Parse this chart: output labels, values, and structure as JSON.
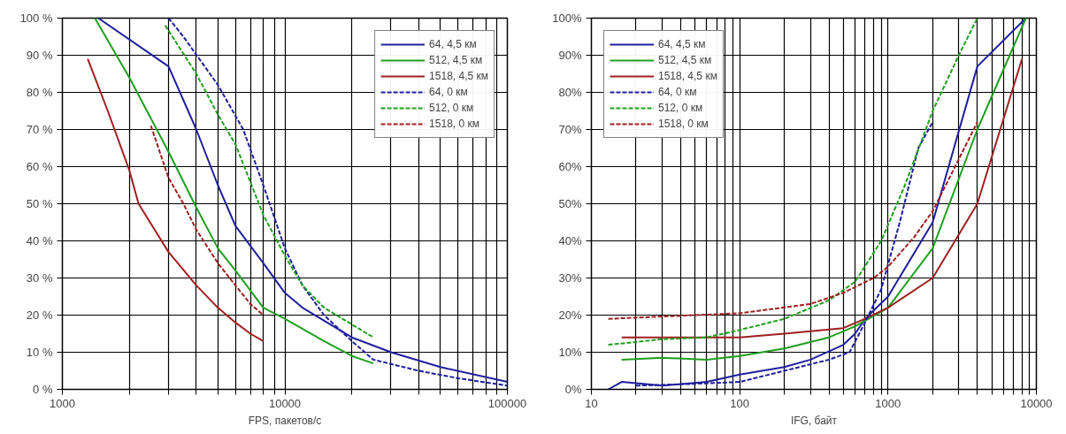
{
  "chart_data": [
    {
      "type": "line",
      "xlabel": "FPS, пакетов/с",
      "log": "x",
      "grid": true,
      "legend": "top right",
      "line_style": "solid",
      "marker": "none",
      "xlim": [
        1000,
        100000
      ],
      "xticks": [
        1000,
        {
          "value": 2000,
          "label": null
        },
        {
          "value": 3000,
          "label": null
        },
        {
          "value": 4000,
          "label": null
        },
        {
          "value": 5000,
          "label": null
        },
        {
          "value": 6000,
          "label": null
        },
        {
          "value": 7000,
          "label": null
        },
        {
          "value": 8000,
          "label": null
        },
        {
          "value": 9000,
          "label": null
        },
        10000,
        {
          "value": 20000,
          "label": null
        },
        {
          "value": 30000,
          "label": null
        },
        {
          "value": 40000,
          "label": null
        },
        {
          "value": 50000,
          "label": null
        },
        {
          "value": 60000,
          "label": null
        },
        {
          "value": 70000,
          "label": null
        },
        {
          "value": 80000,
          "label": null
        },
        {
          "value": 90000,
          "label": null
        },
        100000
      ],
      "ylim": [
        0,
        100
      ],
      "yticks": [
        {
          "value": 0,
          "label": "0 %"
        },
        {
          "value": 10,
          "label": "10 %"
        },
        {
          "value": 20,
          "label": "20 %"
        },
        {
          "value": 30,
          "label": "30 %"
        },
        {
          "value": 40,
          "label": "40 %"
        },
        {
          "value": 50,
          "label": "50 %"
        },
        {
          "value": 60,
          "label": "60 %"
        },
        {
          "value": 70,
          "label": "70 %"
        },
        {
          "value": 80,
          "label": "80 %"
        },
        {
          "value": 90,
          "label": "90 %"
        },
        {
          "value": 100,
          "label": "100 %"
        }
      ],
      "series": [
        {
          "name": "64, 4,5 км",
          "color": "#1f1f9f",
          "x": [
            1450,
            3000,
            4000,
            5000,
            6000,
            8000,
            10000,
            12000,
            20000,
            30000,
            50000,
            100000
          ],
          "values": [
            100,
            87,
            70,
            55,
            44,
            34,
            26,
            22,
            14,
            10,
            6,
            2
          ]
        },
        {
          "name": "512, 4,5 км",
          "color": "#1f9f1f",
          "x": [
            1400,
            2000,
            3000,
            4000,
            5000,
            6000,
            8000,
            10000,
            15000,
            20000,
            25000
          ],
          "values": [
            100,
            84,
            64,
            49,
            38,
            32,
            22,
            19,
            13,
            9,
            7
          ]
        },
        {
          "name": "1518, 4,5 км",
          "color": "#9f1f1f",
          "x": [
            1300,
            1600,
            2000,
            2200,
            3000,
            4000,
            5000,
            6000,
            7000,
            8000
          ],
          "values": [
            89,
            75,
            59,
            50,
            37,
            28,
            22,
            18,
            15,
            13
          ]
        },
        {
          "name": "64, 0 км",
          "color": "#1f1f9f",
          "line_style": "dashed",
          "x": [
            3000,
            3500,
            5000,
            6500,
            8000,
            10000,
            12000,
            15000,
            20000,
            25000,
            40000,
            60000,
            100000
          ],
          "values": [
            100,
            95,
            82,
            70,
            55,
            38,
            28,
            20,
            13,
            8,
            5,
            3,
            1
          ]
        },
        {
          "name": "512, 0 км",
          "color": "#1f9f1f",
          "line_style": "dashed",
          "x": [
            2900,
            4000,
            5000,
            6000,
            8000,
            10000,
            12000,
            15000,
            25000
          ],
          "values": [
            98,
            85,
            74,
            66,
            47,
            36,
            28,
            22,
            14
          ]
        },
        {
          "name": "1518, 0 км",
          "color": "#9f1f1f",
          "line_style": "dashed",
          "x": [
            2500,
            3000,
            3500,
            4000,
            5000,
            6000,
            7000,
            8000
          ],
          "values": [
            71,
            57,
            50,
            43,
            34,
            28,
            23,
            20
          ]
        }
      ]
    },
    {
      "type": "line",
      "xlabel": "IFG, байт",
      "log": "x",
      "grid": true,
      "legend": "top left",
      "line_style": "solid",
      "marker": "none",
      "xlim": [
        10,
        10000
      ],
      "xticks": [
        10,
        {
          "value": 20,
          "label": null
        },
        {
          "value": 30,
          "label": null
        },
        {
          "value": 40,
          "label": null
        },
        {
          "value": 50,
          "label": null
        },
        {
          "value": 60,
          "label": null
        },
        {
          "value": 70,
          "label": null
        },
        {
          "value": 80,
          "label": null
        },
        {
          "value": 90,
          "label": null
        },
        100,
        {
          "value": 200,
          "label": null
        },
        {
          "value": 300,
          "label": null
        },
        {
          "value": 400,
          "label": null
        },
        {
          "value": 500,
          "label": null
        },
        {
          "value": 600,
          "label": null
        },
        {
          "value": 700,
          "label": null
        },
        {
          "value": 800,
          "label": null
        },
        {
          "value": 900,
          "label": null
        },
        1000,
        {
          "value": 2000,
          "label": null
        },
        {
          "value": 3000,
          "label": null
        },
        {
          "value": 4000,
          "label": null
        },
        {
          "value": 5000,
          "label": null
        },
        {
          "value": 6000,
          "label": null
        },
        {
          "value": 7000,
          "label": null
        },
        {
          "value": 8000,
          "label": null
        },
        {
          "value": 9000,
          "label": null
        },
        10000
      ],
      "ylim": [
        0,
        100
      ],
      "yticks": [
        {
          "value": 0,
          "label": "0%"
        },
        {
          "value": 10,
          "label": "10%"
        },
        {
          "value": 20,
          "label": "20%"
        },
        {
          "value": 30,
          "label": "30%"
        },
        {
          "value": 40,
          "label": "40%"
        },
        {
          "value": 50,
          "label": "50%"
        },
        {
          "value": 60,
          "label": "60%"
        },
        {
          "value": 70,
          "label": "70%"
        },
        {
          "value": 80,
          "label": "80%"
        },
        {
          "value": 90,
          "label": "90%"
        },
        {
          "value": 100,
          "label": "100%"
        }
      ],
      "series": [
        {
          "name": "64, 4,5 км",
          "color": "#1f1f9f",
          "x": [
            13,
            16,
            30,
            60,
            100,
            200,
            300,
            500,
            600,
            700,
            1000,
            2000,
            4000,
            8500
          ],
          "values": [
            0,
            2,
            1,
            2,
            4,
            6,
            8,
            12,
            15,
            19,
            25,
            45,
            87,
            100
          ]
        },
        {
          "name": "512, 4,5 км",
          "color": "#1f9f1f",
          "x": [
            16,
            30,
            60,
            100,
            200,
            400,
            600,
            1000,
            2000,
            4000,
            8500
          ],
          "values": [
            8,
            8.5,
            8,
            9,
            11,
            14,
            17,
            22,
            38,
            70,
            100
          ]
        },
        {
          "name": "1518, 4,5 км",
          "color": "#9f1f1f",
          "x": [
            16,
            60,
            100,
            200,
            500,
            700,
            1000,
            2000,
            4000,
            8000
          ],
          "values": [
            14,
            14,
            14,
            15,
            16.5,
            19,
            22,
            30,
            50,
            89
          ]
        },
        {
          "name": "64, 0 км",
          "color": "#1f1f9f",
          "line_style": "dashed",
          "x": [
            20,
            50,
            100,
            200,
            400,
            550,
            700,
            900,
            1200,
            1600,
            2000
          ],
          "values": [
            1,
            1.5,
            2,
            5,
            8,
            10,
            18,
            27,
            45,
            65,
            72
          ]
        },
        {
          "name": "512, 0 км",
          "color": "#1f9f1f",
          "line_style": "dashed",
          "x": [
            13,
            30,
            60,
            100,
            200,
            400,
            600,
            900,
            1300,
            2000,
            3000,
            4000
          ],
          "values": [
            12,
            13.5,
            14,
            16,
            19,
            24,
            29,
            40,
            55,
            75,
            90,
            100
          ]
        },
        {
          "name": "1518, 0 км",
          "color": "#9f1f1f",
          "line_style": "dashed",
          "x": [
            13,
            50,
            100,
            300,
            500,
            800,
            1000,
            1500,
            2000,
            3000,
            4000
          ],
          "values": [
            19,
            20,
            20.5,
            23,
            26,
            30,
            33,
            41,
            48,
            62,
            72
          ]
        }
      ]
    }
  ]
}
